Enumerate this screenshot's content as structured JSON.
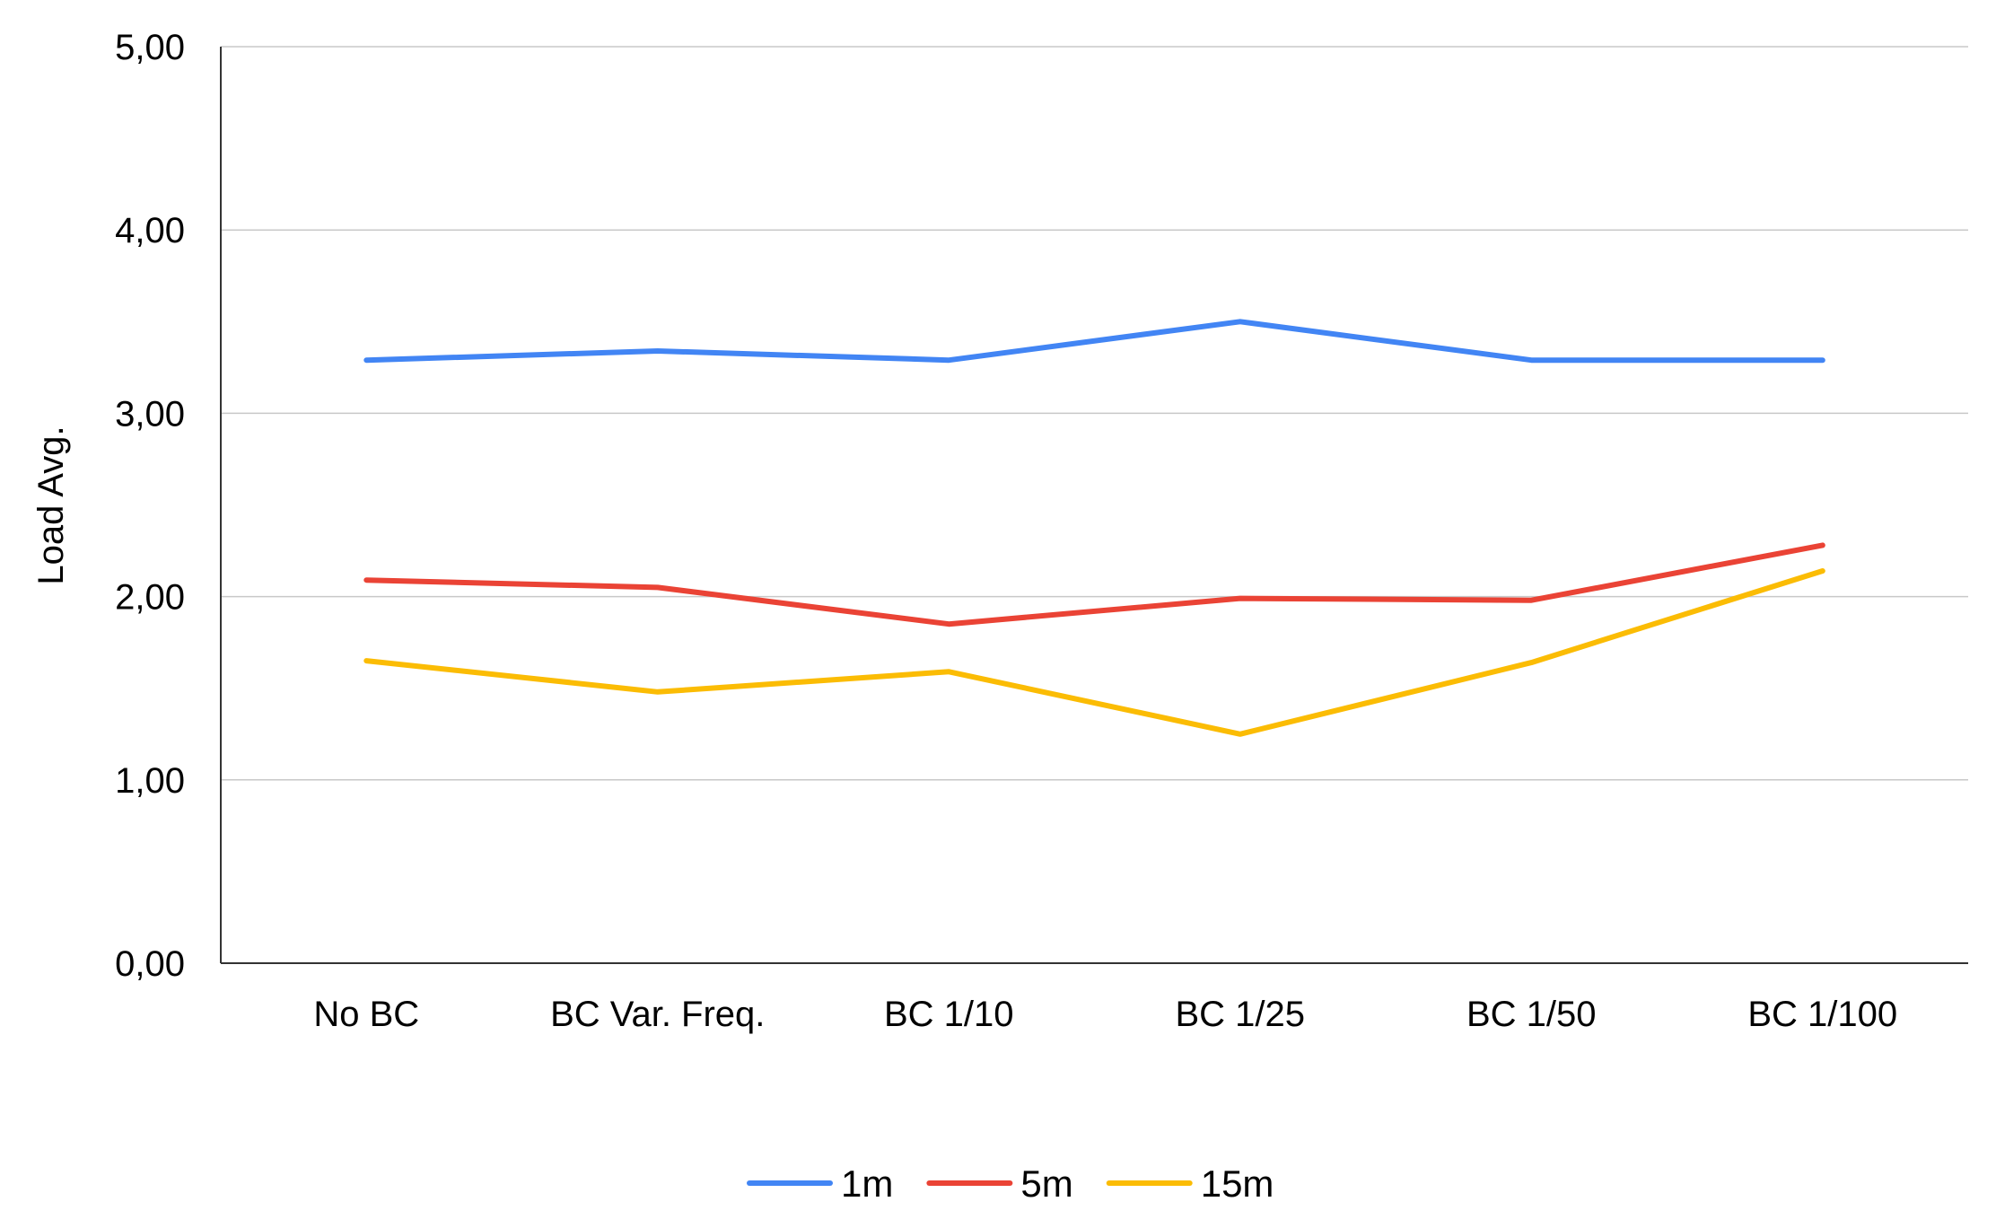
{
  "chart_data": {
    "type": "line",
    "title": "",
    "xlabel": "",
    "ylabel": "Load Avg.",
    "categories": [
      "No BC",
      "BC Var. Freq.",
      "BC 1/10",
      "BC 1/25",
      "BC 1/50",
      "BC 1/100"
    ],
    "ylim": [
      0,
      5
    ],
    "yticks": [
      "0,00",
      "1,00",
      "2,00",
      "3,00",
      "4,00",
      "5,00"
    ],
    "grid": true,
    "legend_position": "bottom",
    "series": [
      {
        "name": "1m",
        "color": "#4285F4",
        "values": [
          3.29,
          3.34,
          3.29,
          3.5,
          3.29,
          3.29
        ]
      },
      {
        "name": "5m",
        "color": "#EA4335",
        "values": [
          2.09,
          2.05,
          1.85,
          1.99,
          1.98,
          2.28
        ]
      },
      {
        "name": "15m",
        "color": "#FBBC04",
        "values": [
          1.65,
          1.48,
          1.59,
          1.25,
          1.64,
          2.14
        ]
      }
    ]
  }
}
